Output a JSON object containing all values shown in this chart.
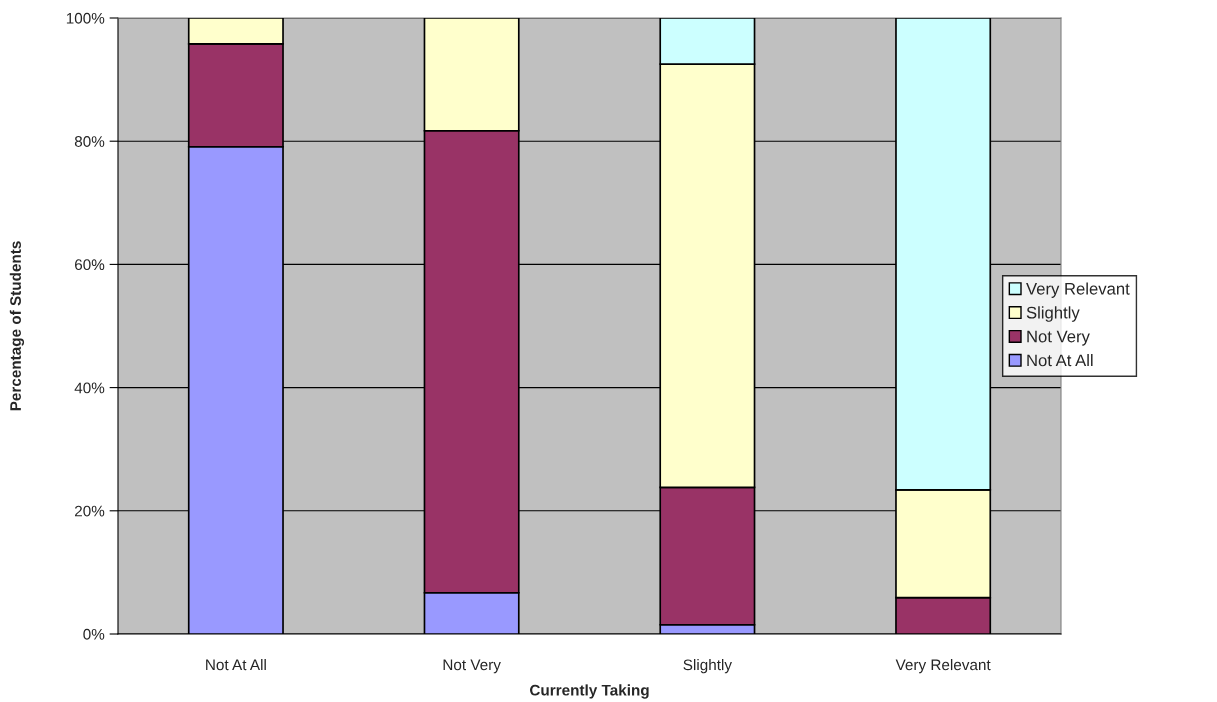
{
  "chart_data": {
    "type": "bar",
    "stacked": true,
    "xlabel": "Currently Taking",
    "ylabel": "Percentage of Students",
    "categories": [
      "Not At All",
      "Not Very",
      "Slightly",
      "Very Relevant"
    ],
    "series": [
      {
        "name": "Not At All",
        "color": "#9999ff",
        "values": [
          79.1,
          6.7,
          1.5,
          null
        ]
      },
      {
        "name": "Not Very",
        "color": "#993366",
        "values": [
          16.7,
          75.0,
          22.3,
          5.9
        ]
      },
      {
        "name": "Slightly",
        "color": "#ffffcc",
        "values": [
          4.2,
          18.3,
          68.7,
          17.5
        ]
      },
      {
        "name": "Very Relevant",
        "color": "#ccffff",
        "values": [
          null,
          null,
          7.5,
          76.6
        ]
      }
    ],
    "ylim": [
      0,
      100
    ],
    "yticks": [
      {
        "value": 0,
        "label": "0%"
      },
      {
        "value": 20,
        "label": "20%"
      },
      {
        "value": 40,
        "label": "40%"
      },
      {
        "value": 60,
        "label": "60%"
      },
      {
        "value": 80,
        "label": "80%"
      },
      {
        "value": 100,
        "label": "100%"
      }
    ],
    "grid": "y",
    "legend": "right"
  }
}
